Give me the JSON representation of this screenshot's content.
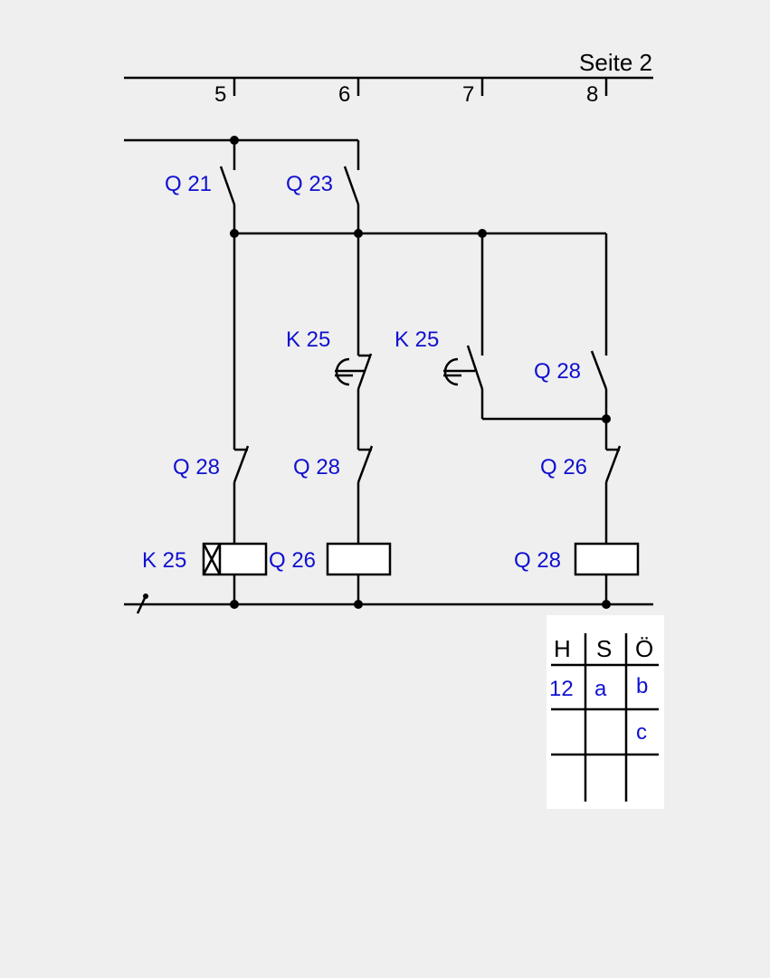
{
  "header": {
    "page_label": "Seite 2",
    "columns": [
      "5",
      "6",
      "7",
      "8"
    ]
  },
  "components": {
    "q21": "Q 21",
    "q23": "Q 23",
    "k25_no_left": "K 25",
    "k25_no_right": "K 25",
    "q28_no": "Q 28",
    "q28_nc_a": "Q 28",
    "q28_nc_b": "Q 28",
    "q26_nc": "Q 26",
    "k25_coil": "K 25",
    "q26_coil": "Q 26",
    "q28_coil": "Q 28"
  },
  "reference_table": {
    "headers": [
      "H",
      "S",
      "Ö"
    ],
    "rows": [
      [
        "12",
        "a",
        "b"
      ],
      [
        "",
        "",
        "c"
      ],
      [
        "",
        "",
        ""
      ]
    ]
  },
  "colors": {
    "background": "#efefef",
    "label": "#1010d0",
    "line": "#000000"
  }
}
